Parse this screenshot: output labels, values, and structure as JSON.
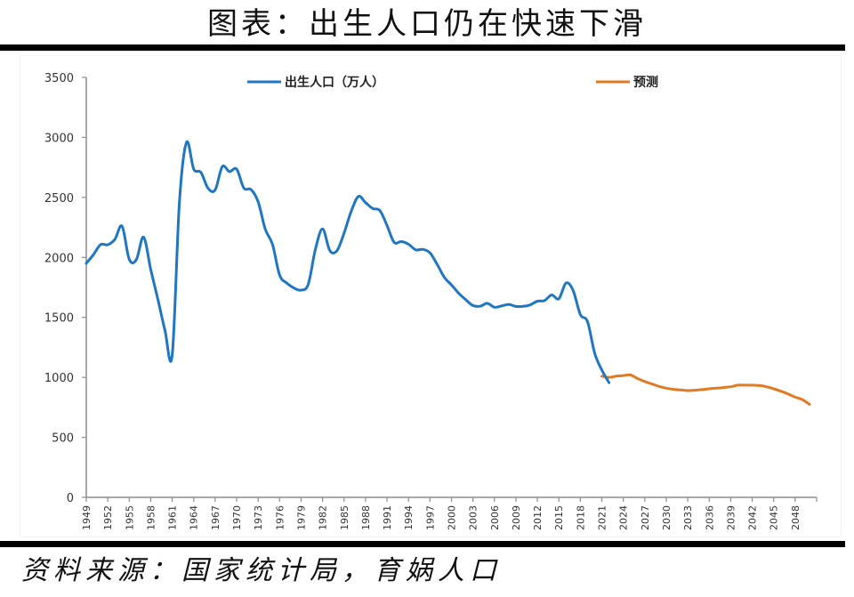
{
  "title": "图表：出生人口仍在快速下滑",
  "source": "资料来源：国家统计局，育娲人口",
  "colors": {
    "births": "#1f77c4",
    "forecast": "#e07b24",
    "axis": "#8c8c8c"
  },
  "chart_data": {
    "type": "line",
    "title": "图表：出生人口仍在快速下滑",
    "xlabel": "",
    "ylabel": "",
    "ylim": [
      0,
      3500
    ],
    "yticks": [
      0,
      500,
      1000,
      1500,
      2000,
      2500,
      3000,
      3500
    ],
    "xticks": [
      1949,
      1952,
      1955,
      1958,
      1961,
      1964,
      1967,
      1970,
      1973,
      1976,
      1979,
      1982,
      1985,
      1988,
      1991,
      1994,
      1997,
      2000,
      2003,
      2006,
      2009,
      2012,
      2015,
      2018,
      2021,
      2024,
      2027,
      2030,
      2033,
      2036,
      2039,
      2042,
      2045,
      2048
    ],
    "xlim": [
      1949,
      2051
    ],
    "grid": false,
    "legend_position": "top",
    "series": [
      {
        "name": "出生人口（万人）",
        "color": "#1f77c4",
        "x": [
          1949,
          1950,
          1951,
          1952,
          1953,
          1954,
          1955,
          1956,
          1957,
          1958,
          1959,
          1960,
          1961,
          1962,
          1963,
          1964,
          1965,
          1966,
          1967,
          1968,
          1969,
          1970,
          1971,
          1972,
          1973,
          1974,
          1975,
          1976,
          1977,
          1978,
          1979,
          1980,
          1981,
          1982,
          1983,
          1984,
          1985,
          1986,
          1987,
          1988,
          1989,
          1990,
          1991,
          1992,
          1993,
          1994,
          1995,
          1996,
          1997,
          1998,
          1999,
          2000,
          2001,
          2002,
          2003,
          2004,
          2005,
          2006,
          2007,
          2008,
          2009,
          2010,
          2011,
          2012,
          2013,
          2014,
          2015,
          2016,
          2017,
          2018,
          2019,
          2020,
          2021,
          2022
        ],
        "values": [
          1950,
          2023,
          2107,
          2105,
          2151,
          2260,
          1984,
          1982,
          2169,
          1900,
          1650,
          1389,
          1187,
          2451,
          2959,
          2737,
          2709,
          2577,
          2563,
          2757,
          2715,
          2736,
          2578,
          2566,
          2463,
          2235,
          2109,
          1853,
          1786,
          1745,
          1727,
          1776,
          2069,
          2237,
          2058,
          2055,
          2202,
          2384,
          2508,
          2457,
          2407,
          2391,
          2265,
          2125,
          2132,
          2110,
          2063,
          2067,
          2038,
          1942,
          1834,
          1771,
          1702,
          1647,
          1599,
          1593,
          1617,
          1585,
          1595,
          1608,
          1591,
          1592,
          1604,
          1635,
          1640,
          1687,
          1655,
          1786,
          1723,
          1523,
          1465,
          1202,
          1062,
          956
        ]
      },
      {
        "name": "预测",
        "color": "#e07b24",
        "x": [
          2021,
          2022,
          2023,
          2024,
          2025,
          2026,
          2027,
          2028,
          2029,
          2030,
          2031,
          2032,
          2033,
          2034,
          2035,
          2036,
          2037,
          2038,
          2039,
          2040,
          2041,
          2042,
          2043,
          2044,
          2045,
          2046,
          2047,
          2048,
          2049,
          2050
        ],
        "values": [
          1010,
          1000,
          1010,
          1015,
          1020,
          990,
          965,
          945,
          925,
          910,
          900,
          895,
          890,
          893,
          898,
          905,
          910,
          915,
          922,
          935,
          935,
          935,
          932,
          922,
          905,
          885,
          862,
          835,
          815,
          775
        ]
      }
    ]
  },
  "legend": [
    {
      "label": "出生人口（万人）",
      "color": "#1f77c4"
    },
    {
      "label": "预测",
      "color": "#e07b24"
    }
  ]
}
